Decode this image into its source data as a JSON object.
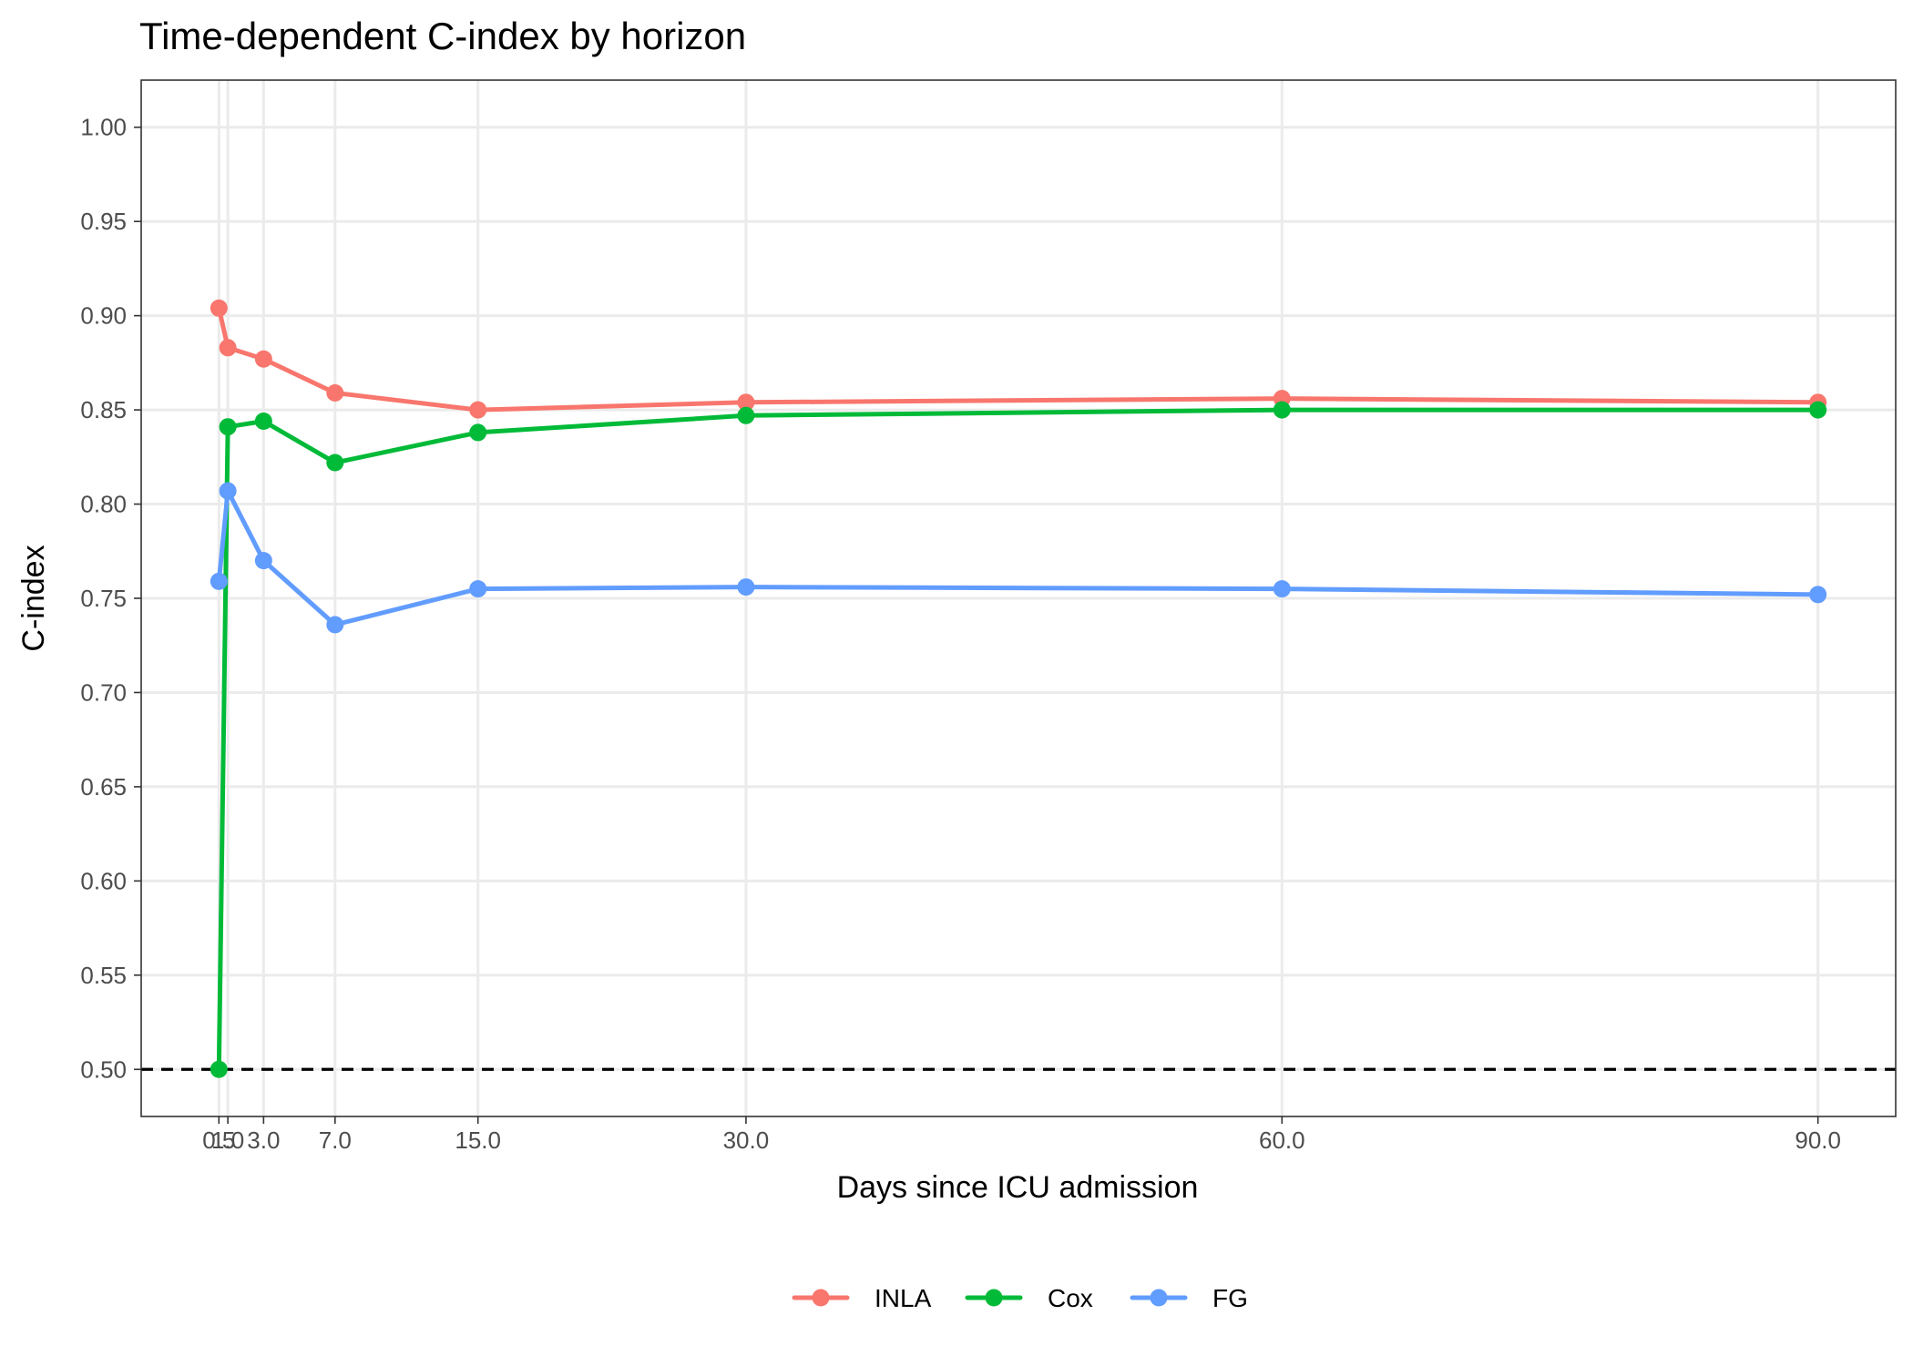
{
  "chart_data": {
    "type": "line",
    "title": "Time-dependent C-index by horizon",
    "xlabel": "Days since ICU admission",
    "ylabel": "C-index",
    "x": [
      0.5,
      1.0,
      3.0,
      7.0,
      15.0,
      30.0,
      60.0,
      90.0
    ],
    "x_tick_labels": [
      "0.5",
      "1.0",
      "3.0",
      "7.0",
      "15.0",
      "30.0",
      "60.0",
      "90.0"
    ],
    "y_ticks": [
      0.5,
      0.55,
      0.6,
      0.65,
      0.7,
      0.75,
      0.8,
      0.85,
      0.9,
      0.95,
      1.0
    ],
    "y_tick_labels": [
      "0.50",
      "0.55",
      "0.60",
      "0.65",
      "0.70",
      "0.75",
      "0.80",
      "0.85",
      "0.90",
      "0.95",
      "1.00"
    ],
    "xlim": [
      -3.85,
      94.35
    ],
    "ylim": [
      0.475,
      1.025
    ],
    "reference_line": {
      "y": 0.5,
      "style": "dashed",
      "color": "#000000"
    },
    "grid": true,
    "legend_position": "bottom",
    "series": [
      {
        "name": "INLA",
        "color": "#F8766D",
        "values": [
          0.904,
          0.883,
          0.877,
          0.859,
          0.85,
          0.854,
          0.856,
          0.854
        ]
      },
      {
        "name": "Cox",
        "color": "#00BA38",
        "values": [
          0.5,
          0.841,
          0.844,
          0.822,
          0.838,
          0.847,
          0.85,
          0.85
        ]
      },
      {
        "name": "FG",
        "color": "#619CFF",
        "values": [
          0.759,
          0.807,
          0.77,
          0.736,
          0.755,
          0.756,
          0.755,
          0.752
        ]
      }
    ]
  }
}
